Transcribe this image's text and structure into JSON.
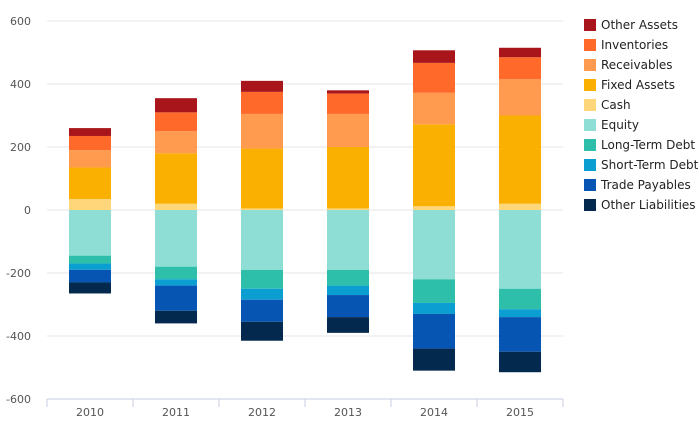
{
  "chart_data": {
    "type": "bar",
    "stacked": true,
    "categories": [
      "2010",
      "2011",
      "2012",
      "2013",
      "2014",
      "2015"
    ],
    "ylim": [
      -600,
      600
    ],
    "yticks": [
      -600,
      -400,
      -200,
      0,
      200,
      400,
      600
    ],
    "grid": true,
    "legend_position": "right",
    "title": "",
    "xlabel": "",
    "ylabel": "",
    "series": [
      {
        "name": "Other Assets",
        "color": "#a8161c",
        "values": [
          25,
          45,
          35,
          10,
          40,
          30
        ]
      },
      {
        "name": "Inventories",
        "color": "#ff6a2b",
        "values": [
          45,
          60,
          70,
          65,
          95,
          70
        ]
      },
      {
        "name": "Receivables",
        "color": "#ff9b4e",
        "values": [
          55,
          70,
          110,
          105,
          100,
          115
        ]
      },
      {
        "name": "Fixed Assets",
        "color": "#f9b000",
        "values": [
          100,
          160,
          190,
          195,
          260,
          280
        ]
      },
      {
        "name": "Cash",
        "color": "#ffd77a",
        "values": [
          35,
          20,
          5,
          5,
          12,
          20
        ]
      },
      {
        "name": "Equity",
        "color": "#8fded6",
        "values": [
          -145,
          -180,
          -190,
          -190,
          -220,
          -250
        ]
      },
      {
        "name": "Long-Term Debt",
        "color": "#2ebfab",
        "values": [
          -25,
          -40,
          -60,
          -50,
          -75,
          -65
        ]
      },
      {
        "name": "Short-Term Debt",
        "color": "#0b9fd1",
        "values": [
          -20,
          -20,
          -35,
          -30,
          -35,
          -25
        ]
      },
      {
        "name": "Trade Payables",
        "color": "#0755b3",
        "values": [
          -40,
          -80,
          -70,
          -70,
          -110,
          -110
        ]
      },
      {
        "name": "Other Liabilities",
        "color": "#04294f",
        "values": [
          -35,
          -40,
          -60,
          -50,
          -70,
          -65
        ]
      }
    ]
  },
  "colors": {
    "grid": "#e6e6e6",
    "axis": "#c7cbe0",
    "tick_text": "#555555"
  }
}
